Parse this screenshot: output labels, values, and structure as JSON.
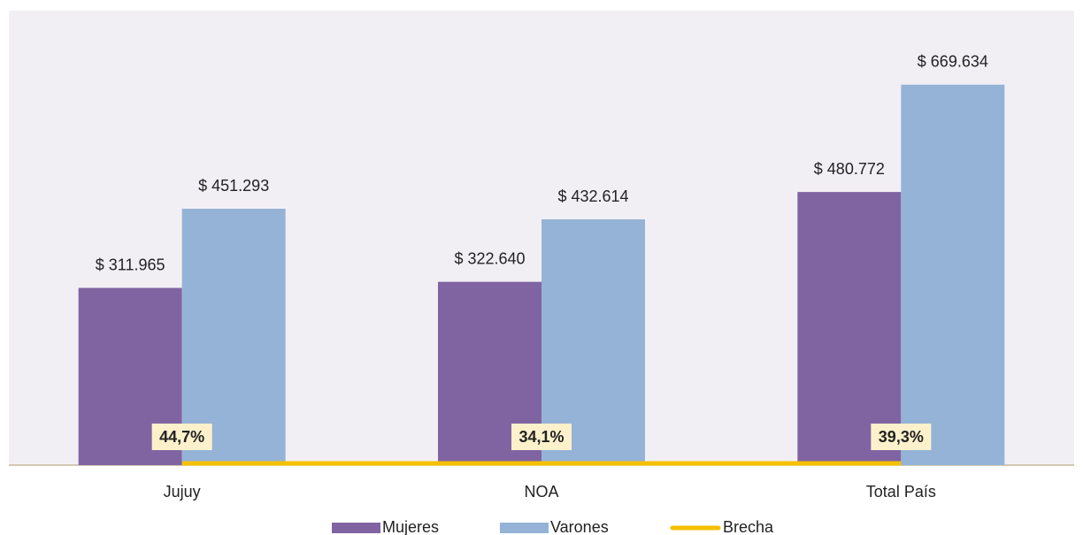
{
  "chart_data": {
    "type": "bar",
    "categories": [
      "Jujuy",
      "NOA",
      "Total País"
    ],
    "series": [
      {
        "name": "Mujeres",
        "type": "bar",
        "color": "#8064a2",
        "values": [
          311965,
          322640,
          480772
        ],
        "value_labels": [
          "$ 311.965",
          "$ 322.640",
          "$ 480.772"
        ]
      },
      {
        "name": "Varones",
        "type": "bar",
        "color": "#95b3d7",
        "values": [
          451293,
          432614,
          669634
        ],
        "value_labels": [
          "$ 451.293",
          "$ 432.614",
          "$ 669.634"
        ]
      },
      {
        "name": "Brecha",
        "type": "line",
        "color": "#f5c000",
        "values": [
          44.7,
          34.1,
          39.3
        ],
        "value_labels": [
          "44,7%",
          "34,1%",
          "39,3%"
        ]
      }
    ],
    "ylim": [
      0,
      800000
    ],
    "legend": "bottom"
  }
}
